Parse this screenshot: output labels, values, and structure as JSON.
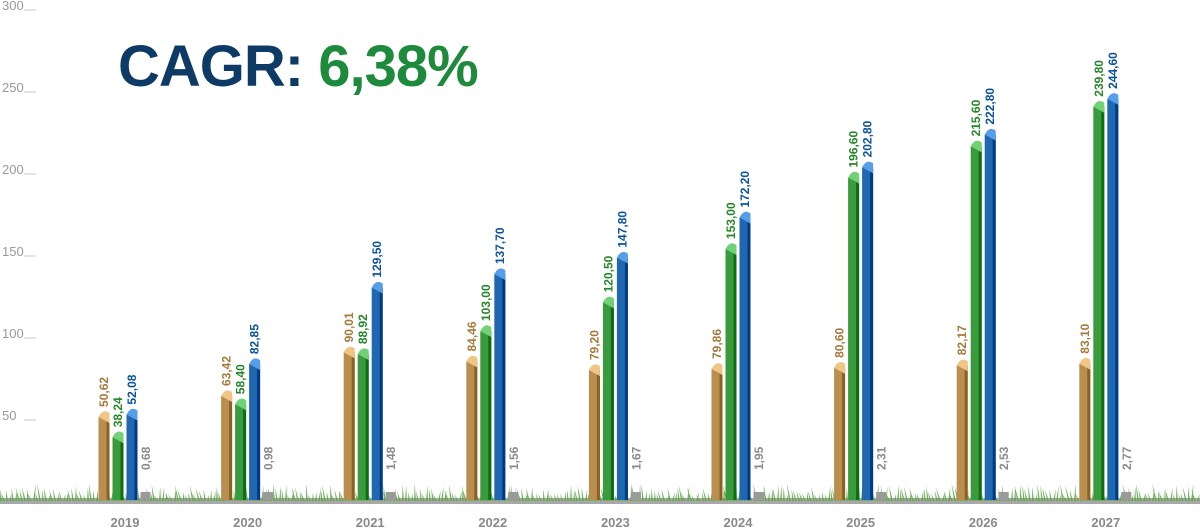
{
  "headline": {
    "label": "CAGR:",
    "value": "6,38%"
  },
  "colors": {
    "gold": "#b98e4e",
    "green": "#3a9b3e",
    "blue": "#1f67b1",
    "gray": "#9a9a9a",
    "axis": "#9a9a9a",
    "grass": "#5aa843",
    "ground": "#a8a8a8"
  },
  "chart_data": {
    "type": "bar",
    "title": "",
    "xlabel": "",
    "ylabel": "",
    "ylim": [
      0,
      300
    ],
    "yticks": [
      "300",
      "250",
      "200",
      "150",
      "100",
      "50"
    ],
    "ytick_values": [
      300,
      250,
      200,
      150,
      100,
      50
    ],
    "categories": [
      "2019",
      "2020",
      "2021",
      "2022",
      "2023",
      "2024",
      "2025",
      "2026",
      "2027"
    ],
    "grid": false,
    "legend": "none",
    "series": [
      {
        "color": "#b98e4e",
        "values": [
          50.62,
          63.42,
          90.01,
          84.46,
          79.2,
          79.86,
          80.6,
          82.17,
          83.1
        ],
        "labels": [
          "50,62",
          "63,42",
          "90,01",
          "84,46",
          "79,20",
          "79,86",
          "80,60",
          "82,17",
          "83,10"
        ]
      },
      {
        "color": "#3a9b3e",
        "values": [
          38.24,
          58.4,
          88.92,
          103.0,
          120.5,
          153.0,
          196.6,
          215.6,
          239.8
        ],
        "labels": [
          "38,24",
          "58,40",
          "88,92",
          "103,00",
          "120,50",
          "153,00",
          "196,60",
          "215,60",
          "239,80"
        ]
      },
      {
        "color": "#1f67b1",
        "values": [
          52.08,
          82.85,
          129.5,
          137.7,
          147.8,
          172.2,
          202.8,
          222.8,
          244.6
        ],
        "labels": [
          "52,08",
          "82,85",
          "129,50",
          "137,70",
          "147,80",
          "172,20",
          "202,80",
          "222,80",
          "244,60"
        ]
      },
      {
        "color": "#9a9a9a",
        "values": [
          0.68,
          0.98,
          1.48,
          1.56,
          1.67,
          1.95,
          2.31,
          2.53,
          2.77
        ],
        "labels": [
          "0,68",
          "0,98",
          "1,48",
          "1,56",
          "1,67",
          "1,95",
          "2,31",
          "2,53",
          "2,77"
        ]
      }
    ]
  }
}
